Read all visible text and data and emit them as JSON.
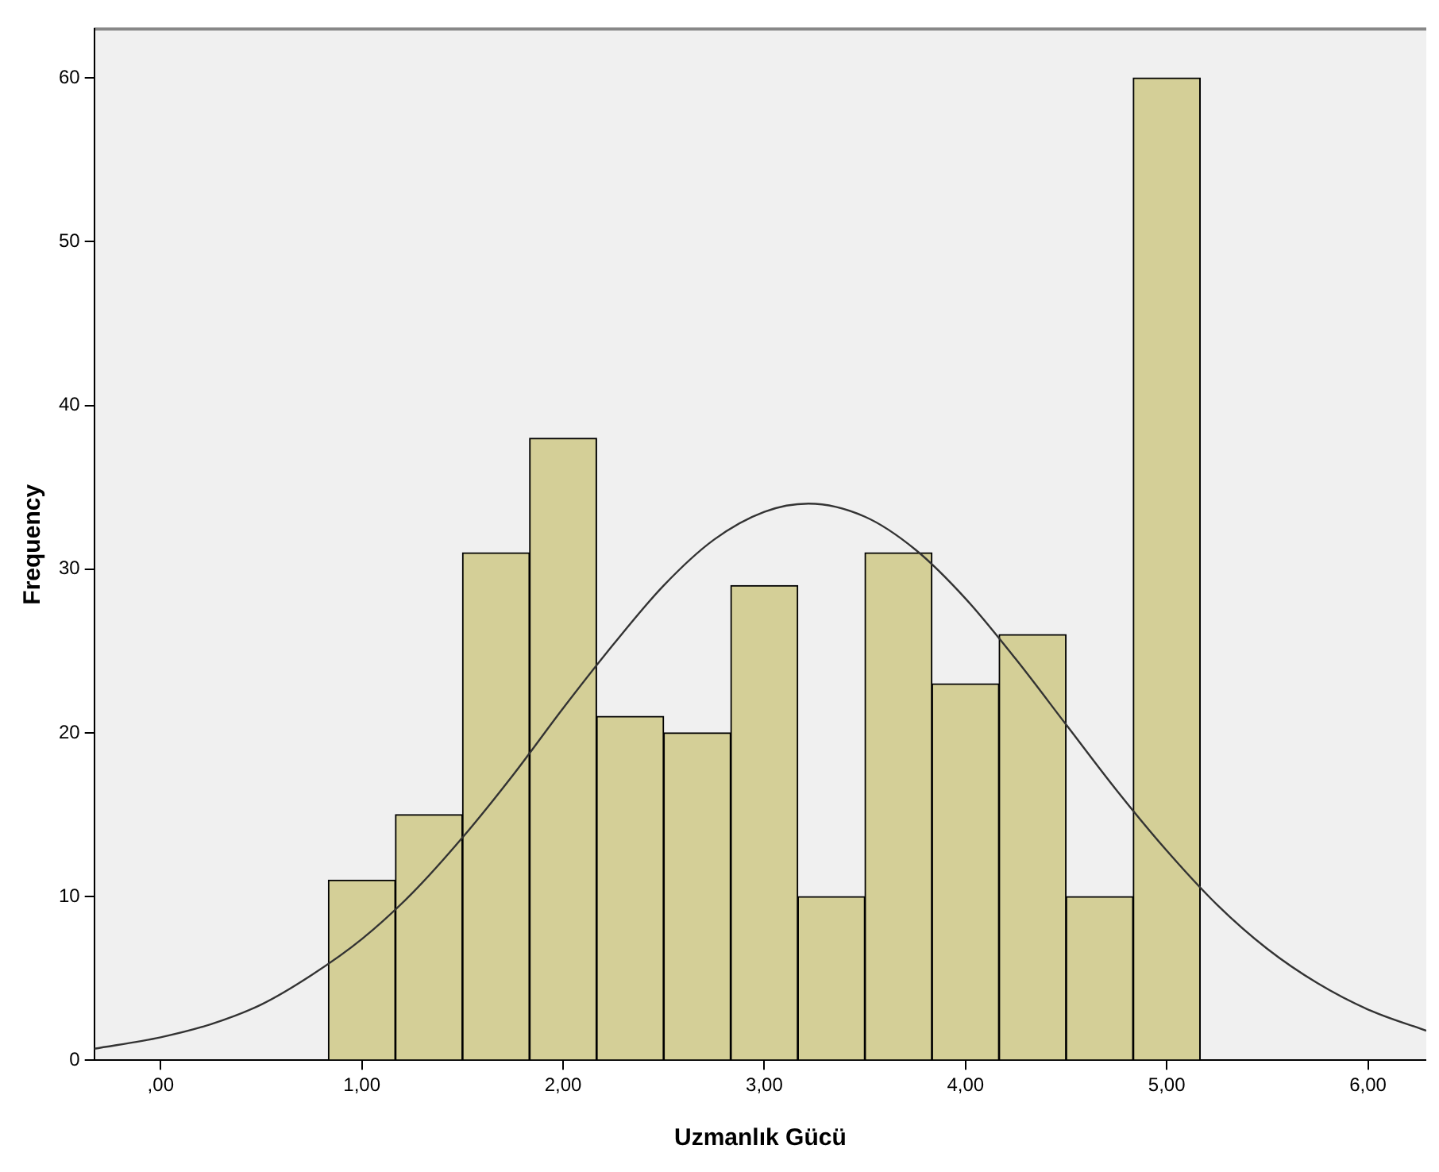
{
  "chart_data": {
    "type": "histogram",
    "xlabel": "Uzmanlık Gücü",
    "ylabel": "Frequency",
    "bins": [
      0.8333,
      1.1667,
      1.5,
      1.8333,
      2.1667,
      2.5,
      2.8333,
      3.1667,
      3.5,
      3.8333,
      4.1667,
      4.5,
      4.8333,
      5.1667
    ],
    "values": [
      11,
      15,
      31,
      38,
      21,
      20,
      29,
      10,
      31,
      23,
      26,
      10,
      60
    ],
    "color": "#d4cf97",
    "series": [
      {
        "type": "line",
        "color": "#333333",
        "x": [
          -0.33,
          0,
          0.25,
          0.5,
          0.75,
          1,
          1.25,
          1.5,
          1.75,
          2,
          2.25,
          2.5,
          2.75,
          3,
          3.22,
          3.5,
          3.75,
          4,
          4.25,
          4.5,
          4.75,
          5,
          5.25,
          5.5,
          5.75,
          6,
          6.29
        ],
        "values": [
          0.7,
          1.4,
          2.2,
          3.4,
          5.2,
          7.4,
          10.2,
          13.6,
          17.4,
          21.5,
          25.4,
          29,
          31.8,
          33.5,
          34,
          33.2,
          31.2,
          28.2,
          24.5,
          20.5,
          16.5,
          12.8,
          9.5,
          6.8,
          4.7,
          3.1,
          1.8
        ]
      }
    ],
    "xlim": [
      -0.33,
      6.29
    ],
    "xticks": [
      {
        "value": 0,
        "label": ",00"
      },
      {
        "value": 1,
        "label": "1,00"
      },
      {
        "value": 2,
        "label": "2,00"
      },
      {
        "value": 3,
        "label": "3,00"
      },
      {
        "value": 4,
        "label": "4,00"
      },
      {
        "value": 5,
        "label": "5,00"
      },
      {
        "value": 6,
        "label": "6,00"
      }
    ],
    "ylim": [
      0,
      63
    ],
    "yticks": [
      0,
      10,
      20,
      30,
      40,
      50,
      60
    ],
    "grid": false,
    "legend": false,
    "marker": "none",
    "line_style": "solid"
  }
}
